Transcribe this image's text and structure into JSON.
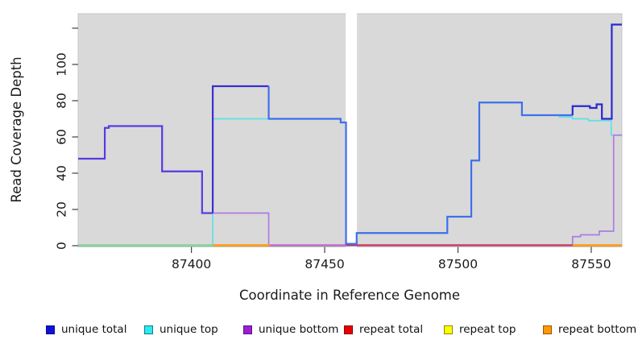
{
  "chart_data": {
    "type": "line",
    "subtype": "step",
    "title": "",
    "xlabel": "Coordinate in Reference Genome",
    "ylabel": "Read Coverage Depth",
    "xlim": [
      87357.5,
      87561.5
    ],
    "ylim": [
      0,
      128
    ],
    "x_ticks": [
      87400,
      87450,
      87500,
      87550
    ],
    "y_ticks": [
      0,
      20,
      40,
      60,
      80,
      100
    ],
    "y_ticks_unlabeled": [
      120
    ],
    "grid": false,
    "panel_background": "#d9d9d9",
    "panel_border": "#c6c6c6",
    "gap_region": {
      "from": 87457.9,
      "to": 87462.1,
      "color": "#ffffff"
    },
    "legend_position": "bottom",
    "legend": [
      {
        "label": "unique total",
        "fill": "#1111d6",
        "border": "#0b0b8f"
      },
      {
        "label": "unique top",
        "fill": "#2ee9ef",
        "border": "#0e7d8c"
      },
      {
        "label": "unique bottom",
        "fill": "#991fd1",
        "border": "#5f0f86"
      },
      {
        "label": "repeat total",
        "fill": "#e80000",
        "border": "#8f0000"
      },
      {
        "label": "repeat top",
        "fill": "#ffff00",
        "border": "#8c8c00"
      },
      {
        "label": "repeat bottom",
        "fill": "#ff9900",
        "border": "#995500"
      }
    ],
    "series": [
      {
        "name": "repeat total",
        "color": "#cb3a58",
        "width": 1.5,
        "steps": [
          [
            87357.5,
            0
          ]
        ],
        "x_end": 87561.5
      },
      {
        "name": "repeat top",
        "color": "#e6e632",
        "width": 1.5,
        "steps": [
          [
            87357.5,
            0
          ]
        ],
        "x_end": 87561.5
      },
      {
        "name": "repeat bottom",
        "color": "#ff9912",
        "width": 1.5,
        "steps": [
          [
            87357.5,
            0
          ]
        ],
        "x_end": 87561.5
      },
      {
        "name": "unique top",
        "color": "#5fe0e6",
        "width": 1.7,
        "steps": [
          [
            87357.5,
            0
          ],
          [
            87408,
            70
          ],
          [
            87456,
            68
          ],
          [
            87458,
            1
          ],
          [
            87462,
            7
          ],
          [
            87496,
            16
          ],
          [
            87505,
            47
          ],
          [
            87508,
            79
          ],
          [
            87524,
            72
          ],
          [
            87538,
            71
          ],
          [
            87543,
            70
          ],
          [
            87549,
            69
          ],
          [
            87557.5,
            61
          ]
        ],
        "x_end": 87561.5
      },
      {
        "name": "unique bottom",
        "color": "#ac7ce2",
        "width": 1.7,
        "steps": [
          [
            87357.5,
            48
          ],
          [
            87367.5,
            65
          ],
          [
            87369,
            66
          ],
          [
            87389,
            41
          ],
          [
            87404,
            18
          ],
          [
            87429,
            0
          ],
          [
            87543,
            5
          ],
          [
            87546,
            6
          ],
          [
            87553,
            8
          ],
          [
            87558.4,
            61
          ]
        ],
        "x_end": 87561.5
      },
      {
        "name": "unique total",
        "color": "#3f70ea",
        "width": 2.2,
        "segments": [
          {
            "color": "#5a3be0",
            "steps": [
              [
                87357.5,
                48
              ],
              [
                87367.5,
                65
              ],
              [
                87369,
                66
              ],
              [
                87389,
                41
              ],
              [
                87404,
                18
              ]
            ],
            "x_end": 87408
          },
          {
            "color": "#3a2ed2",
            "steps": [
              [
                87408,
                88
              ]
            ],
            "x_end": 87429
          },
          {
            "color": "#3f70ea",
            "steps": [
              [
                87429,
                70
              ],
              [
                87456,
                68
              ],
              [
                87458,
                1
              ],
              [
                87462,
                7
              ],
              [
                87496,
                16
              ],
              [
                87505,
                47
              ],
              [
                87508,
                79
              ],
              [
                87524,
                72
              ]
            ],
            "x_end": 87543
          },
          {
            "color": "#2b28cf",
            "steps": [
              [
                87543,
                77
              ],
              [
                87549.5,
                76
              ],
              [
                87552,
                78
              ],
              [
                87554,
                70
              ],
              [
                87557.7,
                122
              ]
            ],
            "x_end": 87561.5
          }
        ]
      }
    ],
    "baseline_overlays": [
      {
        "from": 87357.5,
        "to": 87408,
        "color": "#8fd08f"
      },
      {
        "from": 87408,
        "to": 87429.5,
        "color": "#ff9912"
      },
      {
        "from": 87429.5,
        "to": 87458,
        "color": "#c468cc"
      },
      {
        "from": 87458,
        "to": 87543,
        "color": "#cb3a58"
      },
      {
        "from": 87543,
        "to": 87561.5,
        "color": "#ff9912"
      }
    ]
  }
}
